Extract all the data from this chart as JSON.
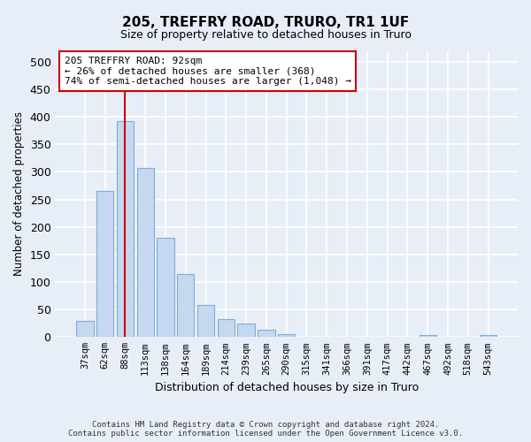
{
  "title": "205, TREFFRY ROAD, TRURO, TR1 1UF",
  "subtitle": "Size of property relative to detached houses in Truro",
  "xlabel": "Distribution of detached houses by size in Truro",
  "ylabel": "Number of detached properties",
  "bar_labels": [
    "37sqm",
    "62sqm",
    "88sqm",
    "113sqm",
    "138sqm",
    "164sqm",
    "189sqm",
    "214sqm",
    "239sqm",
    "265sqm",
    "290sqm",
    "315sqm",
    "341sqm",
    "366sqm",
    "391sqm",
    "417sqm",
    "442sqm",
    "467sqm",
    "492sqm",
    "518sqm",
    "543sqm"
  ],
  "bar_values": [
    30,
    265,
    393,
    307,
    180,
    114,
    58,
    32,
    25,
    14,
    6,
    1,
    1,
    1,
    1,
    1,
    1,
    4,
    1,
    1,
    4
  ],
  "bar_color": "#c5d8f0",
  "bar_edge_color": "#7bafd4",
  "vline_x_index": 2,
  "vline_color": "#cc0000",
  "annotation_text": "205 TREFFRY ROAD: 92sqm\n← 26% of detached houses are smaller (368)\n74% of semi-detached houses are larger (1,048) →",
  "annotation_box_color": "#ffffff",
  "annotation_box_edge": "#cc0000",
  "ylim": [
    0,
    520
  ],
  "yticks": [
    0,
    50,
    100,
    150,
    200,
    250,
    300,
    350,
    400,
    450,
    500
  ],
  "footer": "Contains HM Land Registry data © Crown copyright and database right 2024.\nContains public sector information licensed under the Open Government Licence v3.0.",
  "bg_color": "#e8eef8",
  "plot_bg_color": "#e8eef8"
}
